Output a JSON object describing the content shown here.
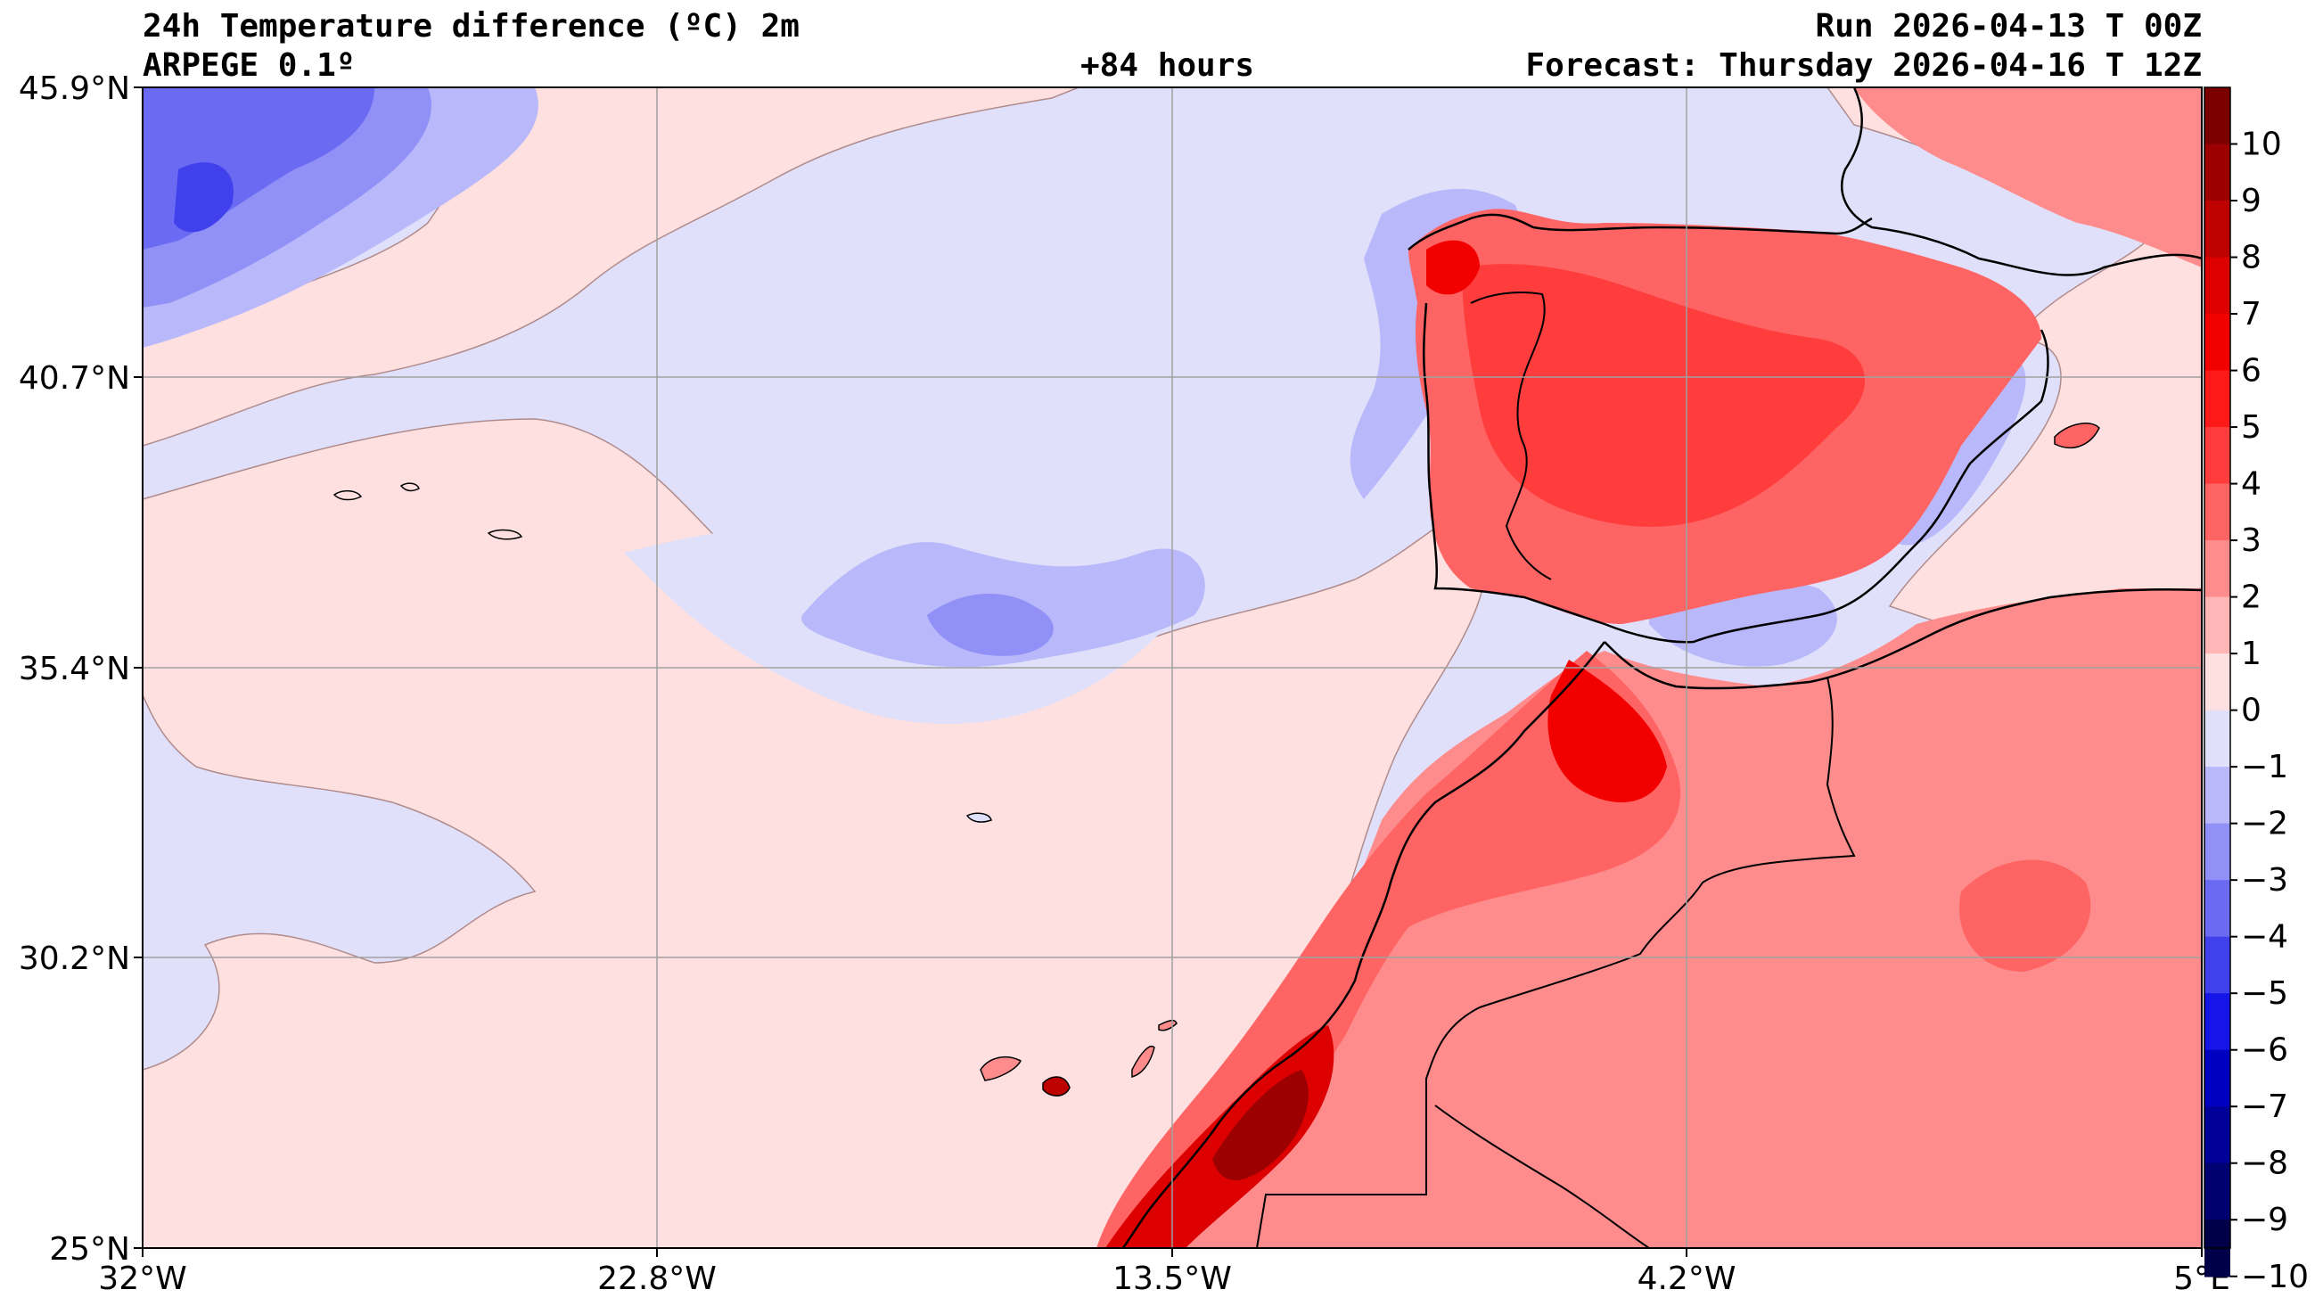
{
  "header": {
    "title": "24h Temperature difference (ºC) 2m",
    "model": "ARPEGE 0.1º",
    "lead_time": "+84 hours",
    "run": "Run 2026-04-13 T 00Z",
    "forecast": "Forecast: Thursday 2026-04-16 T 12Z"
  },
  "axes": {
    "lat_labels": [
      "45.9°N",
      "40.7°N",
      "35.4°N",
      "30.2°N",
      "25°N"
    ],
    "lon_labels": [
      "32°W",
      "22.8°W",
      "13.5°W",
      "4.2°W",
      "5°E"
    ]
  },
  "colorbar": {
    "labels": [
      "10",
      "9",
      "8",
      "7",
      "6",
      "5",
      "4",
      "3",
      "2",
      "1",
      "0",
      "−1",
      "−2",
      "−3",
      "−4",
      "−5",
      "−6",
      "−7",
      "−8",
      "−9",
      "−10"
    ],
    "colors": [
      "#7a0000",
      "#9c0000",
      "#bd0000",
      "#dc0000",
      "#f20000",
      "#ff1a1a",
      "#ff3d3d",
      "#ff6464",
      "#ff8c8c",
      "#ffb6b6",
      "#ffe0e0",
      "#e0e0fb",
      "#b8b8fa",
      "#9090f7",
      "#6a6af2",
      "#4040ec",
      "#1515e8",
      "#0000c0",
      "#000098",
      "#000070",
      "#000048"
    ]
  },
  "chart_data": {
    "type": "heatmap",
    "title": "24h Temperature difference (ºC) 2m",
    "variable": "24h temperature difference at 2m",
    "units": "ºC",
    "lon_range": [
      -32,
      5
    ],
    "lat_range": [
      25,
      45.9
    ],
    "color_levels": [
      -10,
      -9,
      -8,
      -7,
      -6,
      -5,
      -4,
      -3,
      -2,
      -1,
      0,
      1,
      2,
      3,
      4,
      5,
      6,
      7,
      8,
      9,
      10
    ]
  }
}
